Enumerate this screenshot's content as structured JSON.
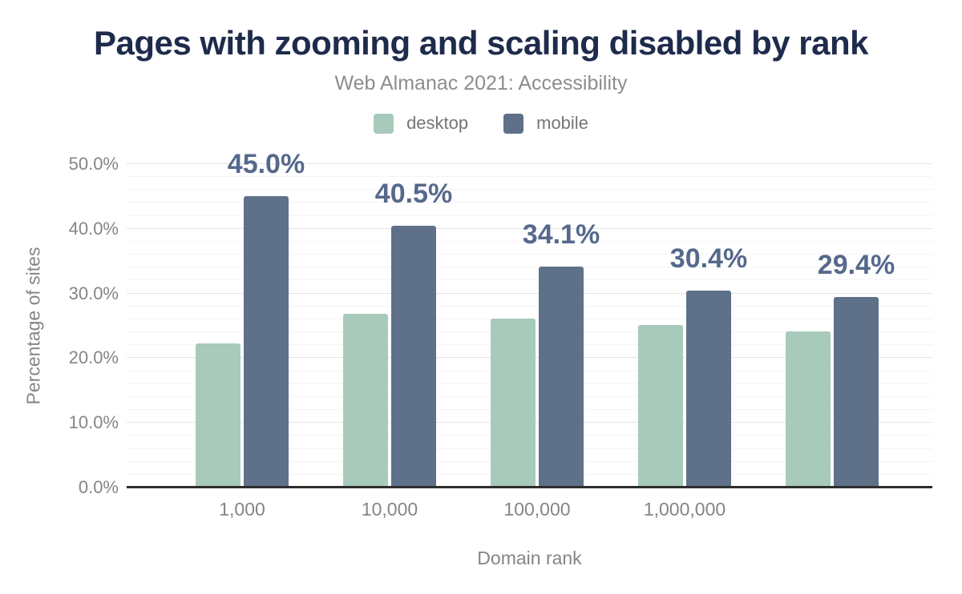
{
  "header": {
    "title": "Pages with zooming and scaling disabled by rank",
    "subtitle": "Web Almanac 2021: Accessibility"
  },
  "legend": [
    {
      "label": "desktop",
      "color": "#a8caba"
    },
    {
      "label": "mobile",
      "color": "#5f7189"
    }
  ],
  "axes": {
    "x_title": "Domain rank",
    "y_title": "Percentage of sites"
  },
  "colors": {
    "title": "#1e2b4c",
    "subtitle": "#8d8d8d",
    "axis_text": "#858585",
    "data_label": "#56698c",
    "grid_major": "#e4e4e4",
    "grid_minor": "#f4f4f4",
    "baseline": "#2e2e2e",
    "background": "#ffffff"
  },
  "chart_data": {
    "type": "bar",
    "title": "Pages with zooming and scaling disabled by rank",
    "subtitle": "Web Almanac 2021: Accessibility",
    "categories": [
      "1,000",
      "10,000",
      "100,000",
      "1,000,000",
      ""
    ],
    "series": [
      {
        "name": "desktop",
        "color": "#a8caba",
        "values": [
          22.3,
          26.8,
          26.1,
          25.1,
          24.1
        ],
        "data_labels": null
      },
      {
        "name": "mobile",
        "color": "#5f7189",
        "values": [
          45.0,
          40.5,
          34.1,
          30.4,
          29.4
        ],
        "data_labels": [
          "45.0%",
          "40.5%",
          "34.1%",
          "30.4%",
          "29.4%"
        ]
      }
    ],
    "xlabel": "Domain rank",
    "ylabel": "Percentage of sites",
    "ylim": [
      0,
      50
    ],
    "yticks": [
      "0.0%",
      "10.0%",
      "20.0%",
      "30.0%",
      "40.0%",
      "50.0%"
    ],
    "grid": {
      "major_step": 10,
      "minor_step": 2,
      "show": true
    },
    "legend_position": "top",
    "data_label_series": "mobile"
  }
}
